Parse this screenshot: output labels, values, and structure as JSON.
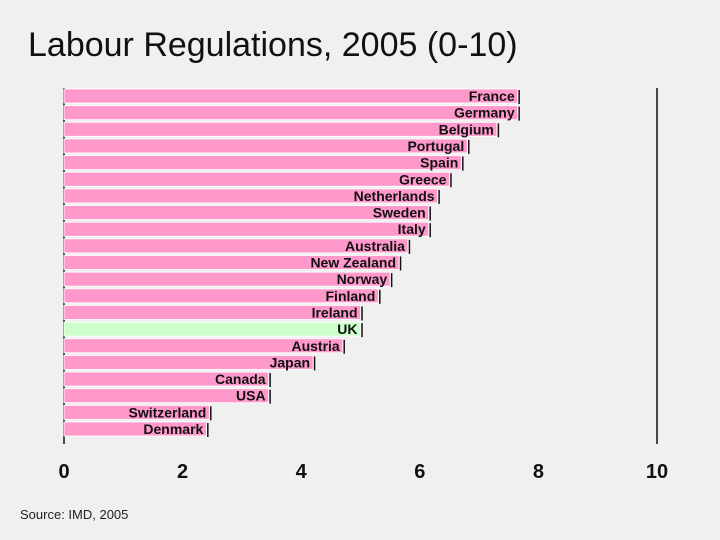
{
  "title": "Labour Regulations, 2005 (0-10)",
  "source": "Source:  IMD, 2005",
  "colors": {
    "bar": "#ff99cc",
    "highlight": "#ccffcc",
    "edge": "#111111",
    "background": "#f0f0f0"
  },
  "chart_data": {
    "type": "bar",
    "orientation": "horizontal",
    "title": "Labour Regulations, 2005 (0-10)",
    "xlabel": "",
    "ylabel": "",
    "xlim": [
      0,
      10
    ],
    "xticks": [
      "0",
      "2",
      "4",
      "6",
      "8",
      "10"
    ],
    "grid": false,
    "highlight": "UK",
    "categories": [
      "France",
      "Germany",
      "Belgium",
      "Portugal",
      "Spain",
      "Greece",
      "Netherlands",
      "Sweden",
      "Italy",
      "Australia",
      "New Zealand",
      "Norway",
      "Finland",
      "Ireland",
      "UK",
      "Austria",
      "Japan",
      "Canada",
      "USA",
      "Switzerland",
      "Denmark"
    ],
    "values": [
      7.65,
      7.65,
      7.3,
      6.8,
      6.7,
      6.5,
      6.3,
      6.15,
      6.15,
      5.8,
      5.65,
      5.5,
      5.3,
      5.0,
      5.0,
      4.7,
      4.2,
      3.45,
      3.45,
      2.45,
      2.4
    ]
  }
}
